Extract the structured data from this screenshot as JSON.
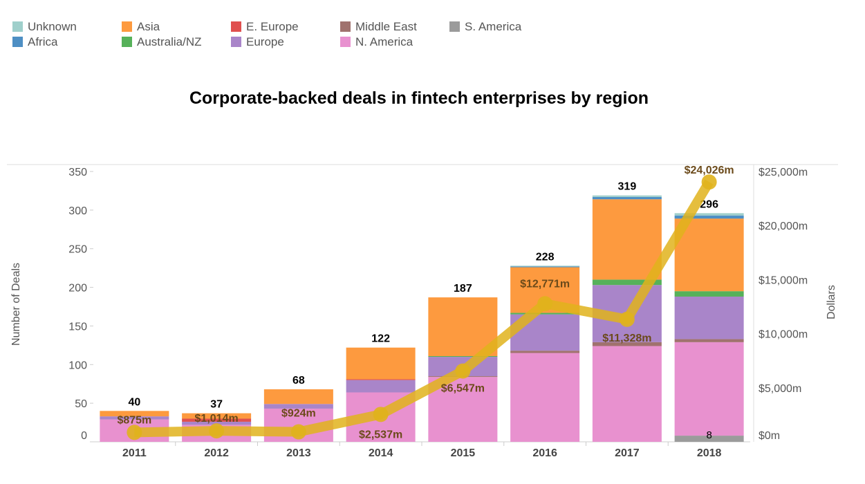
{
  "chart_data": {
    "type": "bar",
    "title": "Corporate-backed deals in fintech enterprises by region",
    "ylabel": "Number of Deals",
    "y2label": "Dollars",
    "ylim": [
      0,
      350
    ],
    "y2lim": [
      0,
      25000
    ],
    "yticks": [
      "0",
      "50",
      "100",
      "150",
      "200",
      "250",
      "300",
      "350"
    ],
    "y2ticks": [
      "$0m",
      "$5,000m",
      "$10,000m",
      "$15,000m",
      "$20,000m",
      "$25,000m"
    ],
    "legend_placement": "top-left",
    "categories": [
      "2011",
      "2012",
      "2013",
      "2014",
      "2015",
      "2016",
      "2017",
      "2018"
    ],
    "series": [
      {
        "name": "S. America",
        "color": "#9b9b9b",
        "values": [
          0,
          0,
          0,
          0,
          0,
          0,
          0,
          8
        ]
      },
      {
        "name": "N. America",
        "color": "#e891cf",
        "values": [
          29,
          22,
          43,
          64,
          84,
          115,
          124,
          121
        ]
      },
      {
        "name": "Middle East",
        "color": "#a0726e",
        "values": [
          0,
          0,
          0,
          0,
          1,
          3,
          5,
          4
        ]
      },
      {
        "name": "Europe",
        "color": "#a985c9",
        "values": [
          4,
          4,
          6,
          16,
          25,
          47,
          74,
          55
        ]
      },
      {
        "name": "E. Europe",
        "color": "#e0504f",
        "values": [
          0,
          4,
          0,
          1,
          0,
          0,
          0,
          0
        ]
      },
      {
        "name": "Australia/NZ",
        "color": "#56b15a",
        "values": [
          0,
          0,
          0,
          0,
          1,
          2,
          7,
          7
        ]
      },
      {
        "name": "Asia",
        "color": "#fd9a3f",
        "values": [
          7,
          7,
          19,
          41,
          76,
          59,
          104,
          94
        ]
      },
      {
        "name": "Africa",
        "color": "#4e8fc4",
        "values": [
          0,
          0,
          0,
          0,
          0,
          1,
          3,
          4
        ]
      },
      {
        "name": "Unknown",
        "color": "#9fcfcb",
        "values": [
          0,
          0,
          0,
          0,
          0,
          1,
          2,
          3
        ]
      }
    ],
    "totals": [
      "40",
      "37",
      "68",
      "122",
      "187",
      "228",
      "319",
      "296"
    ],
    "total_values": [
      40,
      37,
      68,
      122,
      187,
      228,
      319,
      296
    ],
    "annotations": [
      {
        "category": "2018",
        "series": "S. America",
        "label": "8"
      }
    ],
    "line": {
      "axis": "right",
      "color": "#e0b31c",
      "values": [
        875,
        1014,
        924,
        2537,
        6547,
        12771,
        11328,
        24026
      ],
      "labels": [
        "$875m",
        "$1,014m",
        "$924m",
        "$2,537m",
        "$6,547m",
        "$12,771m",
        "$11,328m",
        "$24,026m"
      ]
    }
  },
  "legend": [
    "Unknown",
    "Africa",
    "Asia",
    "Australia/NZ",
    "E. Europe",
    "Europe",
    "Middle East",
    "N. America",
    "S. America"
  ]
}
